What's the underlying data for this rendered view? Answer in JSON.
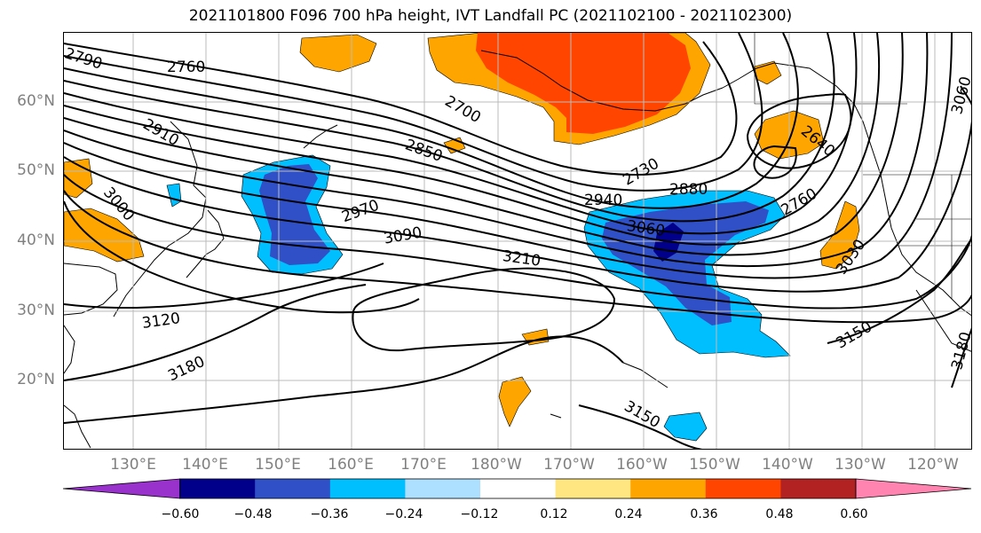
{
  "title": "2021101800 F096 700 hPa height, IVT Landfall PC (2021102100 - 2021102300)",
  "map": {
    "lat_labels": [
      "60°N",
      "50°N",
      "40°N",
      "30°N",
      "20°N"
    ],
    "lon_labels": [
      "130°E",
      "140°E",
      "150°E",
      "160°E",
      "170°E",
      "180°W",
      "170°W",
      "160°W",
      "150°W",
      "140°W",
      "130°W",
      "120°W"
    ],
    "contour_labels": [
      "2790",
      "2760",
      "2910",
      "3000",
      "2700",
      "2850",
      "2970",
      "3090",
      "3210",
      "3120",
      "3180",
      "2730",
      "2940",
      "2880",
      "3060",
      "2760",
      "3030",
      "3150",
      "3150",
      "3180",
      "3060",
      "2640"
    ]
  },
  "colorbar": {
    "tick_labels": [
      "−0.60",
      "−0.48",
      "−0.36",
      "−0.24",
      "−0.12",
      "0.12",
      "0.24",
      "0.36",
      "0.48",
      "0.60"
    ],
    "colors": [
      "#9932CC",
      "#00008B",
      "#3050C8",
      "#00BFFF",
      "#ADDFFF",
      "#FFFFFF",
      "#FFE680",
      "#FFA500",
      "#FF4500",
      "#B22222",
      "#FF85B0"
    ]
  }
}
